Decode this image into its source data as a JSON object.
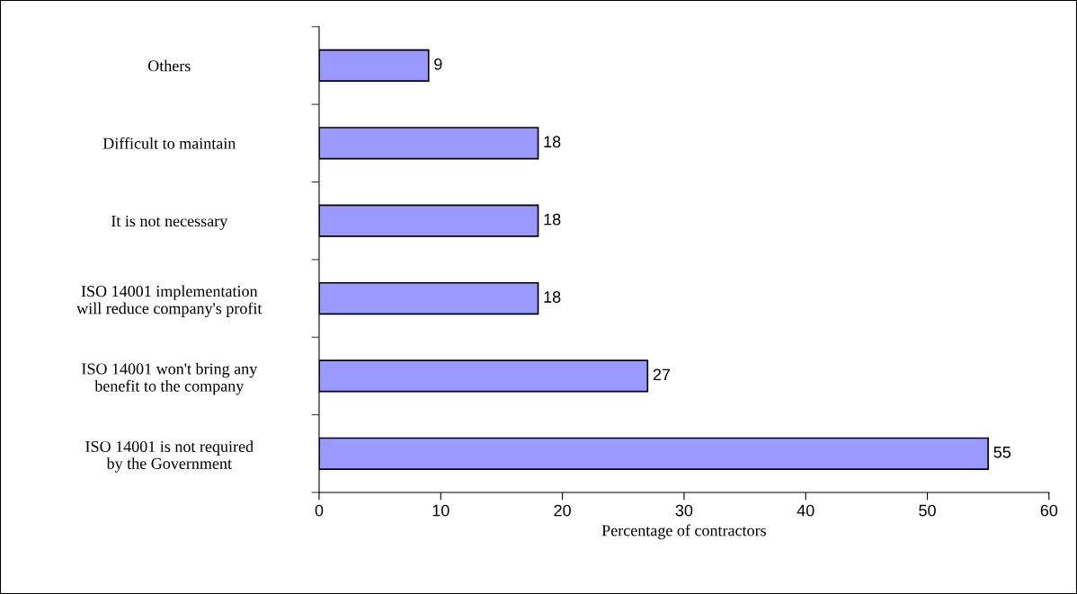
{
  "chart_data": {
    "type": "bar",
    "orientation": "horizontal",
    "categories": [
      "Others",
      "Difficult to maintain",
      "It is not necessary",
      "ISO 14001 implementation\nwill reduce company's profit",
      "ISO 14001 won't bring any\nbenefit to the company",
      "ISO 14001 is not required\nby the Government"
    ],
    "values": [
      9,
      18,
      18,
      18,
      27,
      55
    ],
    "color": "#9999ff",
    "xlabel": "Percentage of contractors",
    "xlim": [
      0,
      60
    ],
    "xticks": [
      0,
      10,
      20,
      30,
      40,
      50,
      60
    ],
    "data_labels": true,
    "grid": false,
    "legend": false
  }
}
